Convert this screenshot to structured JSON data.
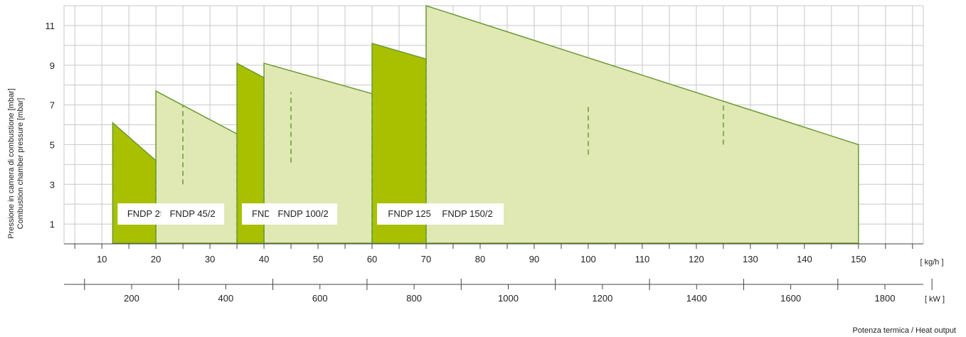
{
  "chart_data": {
    "type": "area",
    "ylabel_lines": [
      "Pressione in camera di combustione [mbar]",
      "Combustion chamber pressure [mbar]"
    ],
    "x_unit": "[ kg/h ]",
    "x2_unit": "[ kW ]",
    "xlabel": "Potenza termica / Heat output",
    "xlim": [
      3,
      162
    ],
    "ylim": [
      0,
      12
    ],
    "yticks": [
      1,
      3,
      5,
      7,
      9,
      11
    ],
    "xticks": [
      10,
      20,
      30,
      40,
      50,
      60,
      70,
      80,
      90,
      100,
      110,
      120,
      130,
      140,
      150
    ],
    "x2ticks": [
      200,
      400,
      600,
      800,
      1000,
      1200,
      1400,
      1600,
      1800
    ],
    "grid": true,
    "colors": {
      "dark": "#a9c000",
      "light": "#e0e8b4",
      "stroke": "#6a9a32",
      "grid": "#c8c8c8"
    },
    "series": [
      {
        "name": "FNDP 25/2",
        "shade": "dark",
        "x": [
          12,
          25
        ],
        "y_top": [
          6.1,
          3.0
        ]
      },
      {
        "name": "FNDP 45/2",
        "shade": "light",
        "x": [
          20,
          45
        ],
        "y_top": [
          7.7,
          4.1
        ]
      },
      {
        "name": "FNDP 70/2",
        "shade": "dark",
        "x": [
          35,
          70
        ],
        "y_top": [
          9.1,
          4.0
        ]
      },
      {
        "name": "FNDP 100/2",
        "shade": "light",
        "x": [
          40,
          100
        ],
        "y_top": [
          9.1,
          4.5
        ]
      },
      {
        "name": "FNDP 125/2",
        "shade": "dark",
        "x": [
          60,
          125
        ],
        "y_top": [
          10.1,
          5.0
        ]
      },
      {
        "name": "FNDP 150/2",
        "shade": "light",
        "x": [
          70,
          150
        ],
        "y_top": [
          12.0,
          5.0
        ]
      }
    ]
  }
}
